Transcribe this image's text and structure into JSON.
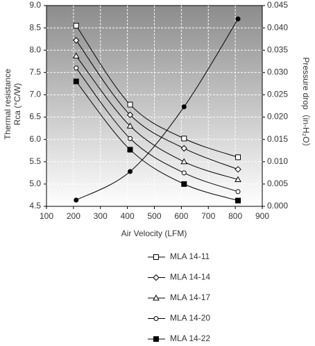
{
  "chart_data": {
    "type": "line",
    "x_label": "Air Velocity (LFM)",
    "y_label": [
      "Thermal resistance",
      "Rca (°C/W)"
    ],
    "y2_label": "Pressure drop（in-H₂O）",
    "x": [
      210,
      410,
      610,
      810
    ],
    "xlim": [
      100,
      900
    ],
    "xticks": [
      100,
      200,
      300,
      400,
      500,
      600,
      700,
      800,
      900
    ],
    "ylim": [
      4.5,
      9
    ],
    "yticks": [
      {
        "value": 9,
        "label": "9.0"
      },
      8.5,
      {
        "value": 8,
        "label": "8.0"
      },
      7.5,
      {
        "value": 7,
        "label": "7.0"
      },
      6.5,
      {
        "value": 6,
        "label": "6.0"
      },
      5.5,
      {
        "value": 5,
        "label": "5.0"
      },
      4.5
    ],
    "y2lim": [
      0,
      0.045
    ],
    "y2ticks": [
      {
        "value": 0.045,
        "label": "0.045"
      },
      {
        "value": 0.04,
        "label": "0.040"
      },
      {
        "value": 0.035,
        "label": "0.035"
      },
      {
        "value": 0.03,
        "label": "0.030"
      },
      {
        "value": 0.025,
        "label": "0.025"
      },
      {
        "value": 0.02,
        "label": "0.020"
      },
      {
        "value": 0.015,
        "label": "0.015"
      },
      {
        "value": 0.01,
        "label": "0.010"
      },
      {
        "value": 0.005,
        "label": "0.005"
      },
      {
        "value": 0,
        "label": "0.000"
      }
    ],
    "grid": true,
    "series": [
      {
        "name": "MLA 14-11",
        "marker": "square-open",
        "color": "#000000",
        "values": [
          8.55,
          6.78,
          6.02,
          5.6
        ]
      },
      {
        "name": "MLA 14-14",
        "marker": "diamond-open",
        "color": "#000000",
        "values": [
          8.22,
          6.55,
          5.8,
          5.33
        ]
      },
      {
        "name": "MLA 14-17",
        "marker": "triangle-open",
        "color": "#000000",
        "values": [
          7.87,
          6.3,
          5.5,
          5.1
        ]
      },
      {
        "name": "MLA 14-20",
        "marker": "circle-open",
        "color": "#000000",
        "values": [
          7.6,
          6.02,
          5.25,
          4.83
        ]
      },
      {
        "name": "MLA 14-22",
        "marker": "square-filled",
        "color": "#000000",
        "values": [
          7.3,
          5.77,
          5.0,
          4.63
        ]
      },
      {
        "marker": "circle-filled",
        "color": "#000000",
        "axis": "y2",
        "values": [
          0.0014,
          0.0078,
          0.0223,
          0.042
        ]
      }
    ]
  }
}
